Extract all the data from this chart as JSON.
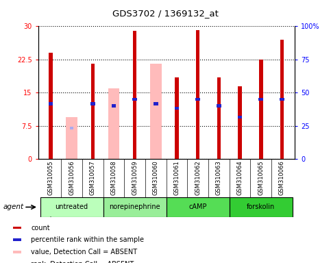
{
  "title": "GDS3702 / 1369132_at",
  "samples": [
    "GSM310055",
    "GSM310056",
    "GSM310057",
    "GSM310058",
    "GSM310059",
    "GSM310060",
    "GSM310061",
    "GSM310062",
    "GSM310063",
    "GSM310064",
    "GSM310065",
    "GSM310066"
  ],
  "groups": [
    {
      "label": "untreated",
      "indices": [
        0,
        1,
        2
      ],
      "color": "#bbffbb"
    },
    {
      "label": "norepinephrine",
      "indices": [
        3,
        4,
        5
      ],
      "color": "#99ee99"
    },
    {
      "label": "cAMP",
      "indices": [
        6,
        7,
        8
      ],
      "color": "#55dd55"
    },
    {
      "label": "forskolin",
      "indices": [
        9,
        10,
        11
      ],
      "color": "#33cc33"
    }
  ],
  "red_bars": [
    24.0,
    null,
    21.5,
    null,
    29.0,
    null,
    18.5,
    29.2,
    18.5,
    16.5,
    22.5,
    27.0
  ],
  "pink_bars": [
    null,
    9.5,
    null,
    16.0,
    null,
    21.5,
    null,
    null,
    null,
    null,
    null,
    null
  ],
  "blue_marker_y": [
    12.5,
    null,
    12.5,
    12.0,
    13.5,
    12.5,
    11.5,
    13.5,
    12.0,
    9.5,
    13.5,
    13.5
  ],
  "lavender_marker_y": [
    null,
    7.0,
    null,
    12.0,
    null,
    12.5,
    null,
    null,
    null,
    null,
    null,
    null
  ],
  "ylim": [
    0,
    30
  ],
  "yticks_left": [
    0,
    7.5,
    15,
    22.5,
    30
  ],
  "yticklabels_right": [
    "0",
    "25",
    "50",
    "75",
    "100%"
  ],
  "red_color": "#cc0000",
  "pink_color": "#ffbbbb",
  "blue_color": "#2222cc",
  "lavender_color": "#aaaaee",
  "gray_bg": "#d4d4d4"
}
